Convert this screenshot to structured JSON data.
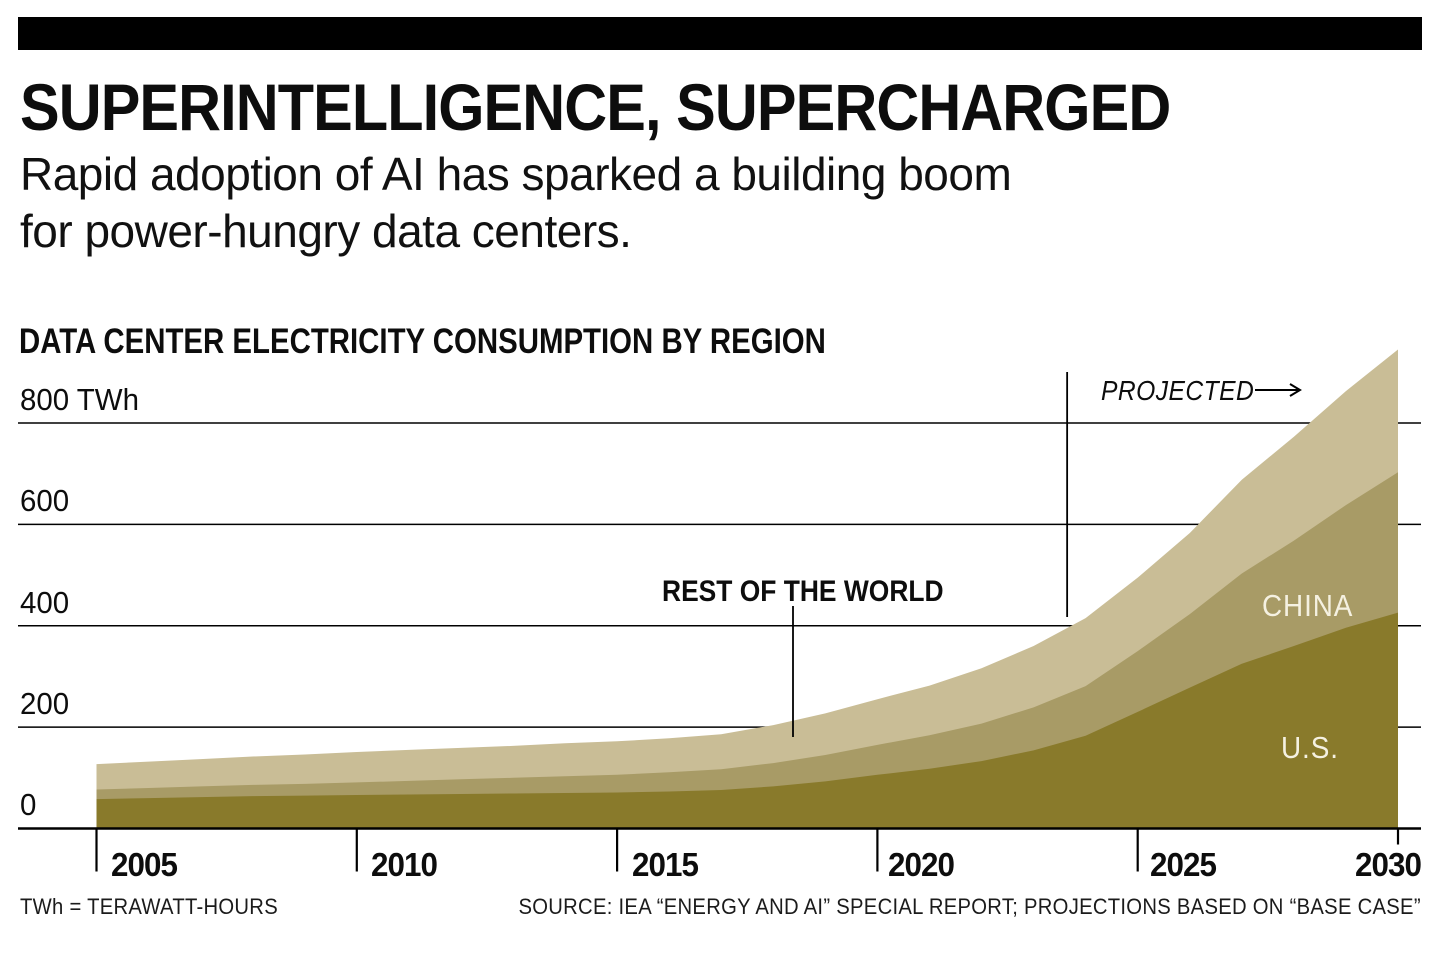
{
  "header": {
    "title": "SUPERINTELLIGENCE, SUPERCHARGED",
    "subtitle": "Rapid adoption of AI has sparked a building boom\nfor power-hungry data centers."
  },
  "chart_data": {
    "type": "area",
    "stacked": true,
    "title": "DATA CENTER ELECTRICITY CONSUMPTION BY REGION",
    "unit": "TWh",
    "grid": "horizontal",
    "legend": "inline-labels",
    "ylim": [
      0,
      950
    ],
    "x": [
      2005,
      2006,
      2007,
      2008,
      2009,
      2010,
      2011,
      2012,
      2013,
      2014,
      2015,
      2016,
      2017,
      2018,
      2019,
      2020,
      2021,
      2022,
      2023,
      2024,
      2025,
      2026,
      2027,
      2028,
      2029,
      2030
    ],
    "x_ticks": [
      {
        "label": "2005",
        "value": 2005
      },
      {
        "label": "2010",
        "value": 2010
      },
      {
        "label": "2015",
        "value": 2015
      },
      {
        "label": "2020",
        "value": 2020
      },
      {
        "label": "2025",
        "value": 2025
      },
      {
        "label": "2030",
        "value": 2030
      }
    ],
    "y_ticks": [
      {
        "label": "800 TWh",
        "value": 800
      },
      {
        "label": "600",
        "value": 600
      },
      {
        "label": "400",
        "value": 400
      },
      {
        "label": "200",
        "value": 200
      },
      {
        "label": "0",
        "value": 0
      }
    ],
    "series": [
      {
        "name": "U.S.",
        "color": "#897A2B",
        "values": [
          58,
          60,
          62,
          64,
          65,
          66,
          67,
          68,
          69,
          70,
          71,
          73,
          76,
          83,
          93,
          106,
          118,
          133,
          154,
          183,
          230,
          278,
          325,
          360,
          396,
          426
        ]
      },
      {
        "name": "CHINA",
        "color": "#A89B66",
        "values": [
          19,
          20,
          21,
          22,
          23,
          25,
          27,
          29,
          31,
          33,
          35,
          38,
          41,
          46,
          52,
          59,
          66,
          74,
          85,
          98,
          120,
          145,
          178,
          208,
          242,
          277
        ]
      },
      {
        "name": "REST OF THE WORLD",
        "color": "#C9BD96",
        "values": [
          50,
          52,
          54,
          56,
          58,
          60,
          61,
          62,
          63,
          65,
          66,
          67,
          69,
          75,
          82,
          90,
          98,
          109,
          121,
          134,
          145,
          160,
          185,
          205,
          225,
          242
        ]
      }
    ],
    "annotations": {
      "projected": {
        "label": "PROJECTED",
        "divider_year": 2024
      }
    }
  },
  "footer": {
    "note": "TWh = TERAWATT-HOURS",
    "source": "SOURCE: IEA “ENERGY AND AI” SPECIAL REPORT; PROJECTIONS BASED ON “BASE CASE”"
  }
}
